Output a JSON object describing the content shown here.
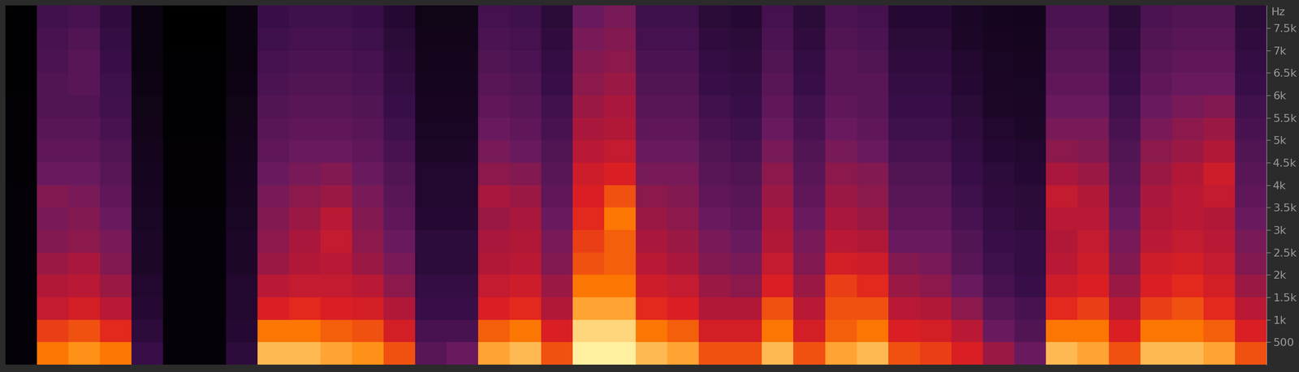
{
  "chart_data": {
    "type": "heatmap",
    "y_label": "Hz",
    "ylim": [
      0,
      8000
    ],
    "yticks": [
      {
        "value": 500,
        "label": "500"
      },
      {
        "value": 1000,
        "label": "1k"
      },
      {
        "value": 1500,
        "label": "1.5k"
      },
      {
        "value": 2000,
        "label": "2k"
      },
      {
        "value": 2500,
        "label": "2.5k"
      },
      {
        "value": 3000,
        "label": "3k"
      },
      {
        "value": 3500,
        "label": "3.5k"
      },
      {
        "value": 4000,
        "label": "4k"
      },
      {
        "value": 4500,
        "label": "4.5k"
      },
      {
        "value": 5000,
        "label": "5k"
      },
      {
        "value": 5500,
        "label": "5.5k"
      },
      {
        "value": 6000,
        "label": "6k"
      },
      {
        "value": 6500,
        "label": "6.5k"
      },
      {
        "value": 7000,
        "label": "7k"
      },
      {
        "value": 7500,
        "label": "7.5k"
      }
    ],
    "tick_labels": "y",
    "grid": false,
    "frequency_bins": [
      0,
      500,
      1000,
      1500,
      2000,
      2500,
      3000,
      3500,
      4000,
      4500,
      5000,
      5500,
      6000,
      6500,
      7000,
      7500,
      8000
    ],
    "cells": [
      [
        5,
        85,
        88,
        85,
        30,
        5,
        5,
        25,
        92,
        92,
        90,
        88,
        80,
        40,
        45,
        90,
        92,
        80,
        98,
        98,
        92,
        90,
        80,
        80,
        92,
        80,
        90,
        92,
        80,
        78,
        72,
        55,
        45,
        92,
        90,
        80,
        92,
        92,
        90,
        80
      ],
      [
        5,
        78,
        80,
        75,
        25,
        5,
        5,
        22,
        85,
        85,
        82,
        80,
        70,
        35,
        35,
        82,
        85,
        72,
        95,
        95,
        85,
        82,
        70,
        70,
        85,
        70,
        82,
        85,
        72,
        70,
        62,
        45,
        38,
        85,
        85,
        72,
        85,
        85,
        82,
        72
      ],
      [
        5,
        65,
        70,
        62,
        22,
        5,
        5,
        20,
        72,
        75,
        72,
        70,
        60,
        30,
        30,
        72,
        75,
        60,
        90,
        90,
        75,
        72,
        60,
        60,
        80,
        62,
        80,
        80,
        62,
        60,
        52,
        40,
        35,
        75,
        78,
        62,
        78,
        80,
        75,
        62
      ],
      [
        5,
        60,
        62,
        55,
        20,
        5,
        5,
        20,
        62,
        65,
        65,
        62,
        52,
        28,
        28,
        65,
        68,
        55,
        85,
        85,
        68,
        65,
        55,
        52,
        72,
        55,
        78,
        75,
        55,
        52,
        45,
        35,
        30,
        68,
        72,
        55,
        72,
        75,
        70,
        55
      ],
      [
        5,
        55,
        58,
        50,
        18,
        5,
        5,
        18,
        55,
        60,
        62,
        55,
        48,
        25,
        25,
        60,
        62,
        50,
        80,
        82,
        62,
        58,
        50,
        48,
        65,
        50,
        70,
        68,
        50,
        48,
        40,
        32,
        28,
        62,
        68,
        50,
        68,
        70,
        65,
        50
      ],
      [
        5,
        50,
        52,
        48,
        18,
        5,
        5,
        18,
        52,
        58,
        65,
        52,
        45,
        25,
        25,
        58,
        60,
        48,
        78,
        82,
        58,
        55,
        48,
        45,
        60,
        48,
        62,
        60,
        45,
        45,
        38,
        30,
        28,
        60,
        65,
        48,
        62,
        65,
        62,
        48
      ],
      [
        5,
        48,
        50,
        45,
        16,
        5,
        5,
        16,
        50,
        55,
        62,
        50,
        42,
        22,
        22,
        55,
        58,
        45,
        75,
        85,
        55,
        52,
        45,
        42,
        58,
        45,
        58,
        55,
        42,
        42,
        35,
        28,
        25,
        62,
        62,
        45,
        60,
        62,
        60,
        45
      ],
      [
        5,
        50,
        48,
        42,
        15,
        4,
        4,
        15,
        48,
        52,
        55,
        48,
        40,
        20,
        20,
        58,
        55,
        42,
        72,
        80,
        52,
        50,
        42,
        40,
        55,
        42,
        55,
        52,
        40,
        40,
        32,
        26,
        24,
        65,
        60,
        42,
        58,
        62,
        65,
        42
      ],
      [
        4,
        45,
        45,
        40,
        14,
        4,
        4,
        14,
        45,
        48,
        50,
        45,
        38,
        20,
        20,
        52,
        50,
        40,
        68,
        72,
        48,
        48,
        40,
        38,
        52,
        40,
        52,
        50,
        38,
        38,
        30,
        25,
        22,
        58,
        55,
        40,
        55,
        60,
        68,
        40
      ],
      [
        4,
        42,
        42,
        38,
        13,
        4,
        4,
        13,
        42,
        45,
        45,
        42,
        35,
        18,
        18,
        48,
        45,
        38,
        62,
        65,
        45,
        45,
        38,
        35,
        48,
        38,
        48,
        45,
        35,
        35,
        28,
        22,
        20,
        52,
        50,
        38,
        52,
        55,
        60,
        38
      ],
      [
        4,
        40,
        40,
        35,
        12,
        3,
        3,
        12,
        40,
        42,
        42,
        40,
        32,
        16,
        16,
        45,
        42,
        35,
        58,
        60,
        42,
        42,
        35,
        32,
        45,
        35,
        45,
        42,
        32,
        32,
        26,
        20,
        18,
        48,
        48,
        35,
        48,
        52,
        55,
        35
      ],
      [
        4,
        38,
        38,
        33,
        11,
        3,
        3,
        11,
        38,
        40,
        40,
        38,
        30,
        15,
        15,
        42,
        40,
        33,
        55,
        58,
        40,
        40,
        33,
        30,
        42,
        33,
        42,
        40,
        30,
        30,
        24,
        18,
        17,
        45,
        45,
        33,
        45,
        48,
        50,
        33
      ],
      [
        3,
        38,
        40,
        32,
        10,
        3,
        3,
        10,
        36,
        38,
        38,
        36,
        28,
        14,
        14,
        40,
        38,
        30,
        52,
        55,
        38,
        38,
        30,
        28,
        40,
        30,
        40,
        40,
        28,
        28,
        22,
        17,
        16,
        42,
        42,
        30,
        42,
        45,
        45,
        30
      ],
      [
        3,
        36,
        40,
        30,
        9,
        3,
        3,
        9,
        34,
        36,
        36,
        34,
        26,
        13,
        13,
        38,
        36,
        28,
        50,
        52,
        36,
        36,
        28,
        26,
        38,
        28,
        40,
        38,
        26,
        26,
        20,
        16,
        15,
        40,
        40,
        28,
        40,
        42,
        42,
        28
      ],
      [
        3,
        35,
        38,
        28,
        8,
        2,
        2,
        8,
        32,
        34,
        34,
        32,
        24,
        12,
        12,
        36,
        34,
        26,
        48,
        50,
        34,
        34,
        26,
        24,
        36,
        26,
        38,
        36,
        24,
        24,
        18,
        15,
        14,
        38,
        38,
        26,
        38,
        40,
        40,
        26
      ],
      [
        3,
        33,
        35,
        26,
        8,
        2,
        2,
        8,
        30,
        32,
        32,
        30,
        22,
        11,
        11,
        34,
        32,
        24,
        45,
        48,
        32,
        32,
        24,
        22,
        34,
        24,
        36,
        34,
        22,
        22,
        17,
        14,
        13,
        36,
        36,
        24,
        36,
        38,
        38,
        24
      ]
    ]
  }
}
